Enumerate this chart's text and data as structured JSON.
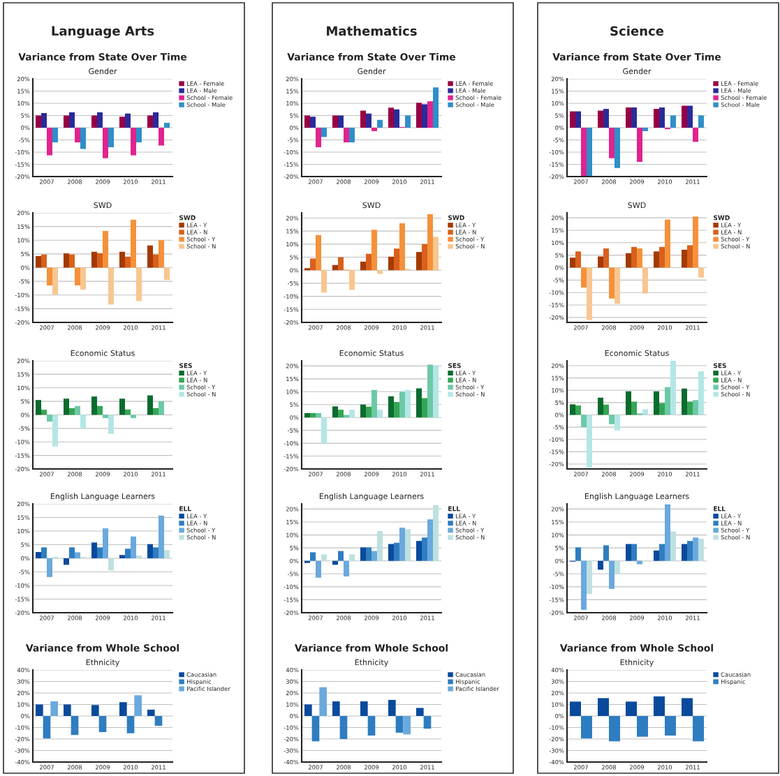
{
  "chart_data": [
    {
      "type": "bar",
      "title": "Gender",
      "annotations": [
        "Language Arts",
        "Variance from State Over Time"
      ],
      "categories": [
        "2007",
        "2008",
        "2009",
        "2010",
        "2011"
      ],
      "grid": "y",
      "legend": "top right",
      "ylim": [
        -20,
        20
      ],
      "yticks": [
        {
          "value": -20,
          "label": "-20%"
        },
        {
          "value": -15,
          "label": "-15%"
        },
        {
          "value": -10,
          "label": "-10%"
        },
        {
          "value": -5,
          "label": "-5%"
        },
        {
          "value": 0,
          "label": "0%"
        },
        {
          "value": 5,
          "label": "5%"
        },
        {
          "value": 10,
          "label": "10%"
        },
        {
          "value": 15,
          "label": "15%"
        },
        {
          "value": 20,
          "label": "20%"
        }
      ],
      "series": [
        {
          "name": "LEA - Female",
          "color": "#990044",
          "values": [
            5,
            5,
            5,
            4.5,
            5
          ]
        },
        {
          "name": "LEA - Male",
          "color": "#2a2a9a",
          "values": [
            6,
            6.3,
            6.3,
            5.8,
            6.3
          ]
        },
        {
          "name": "School - Female",
          "color": "#e0248f",
          "values": [
            -11.3,
            -6,
            -12.5,
            -11.3,
            -7.3
          ]
        },
        {
          "name": "School - Male",
          "color": "#2f8fc8",
          "values": [
            -6,
            -8.7,
            -8,
            -6,
            2
          ]
        }
      ]
    },
    {
      "type": "bar",
      "title": "SWD",
      "legend_title": "SWD",
      "categories": [
        "2007",
        "2008",
        "2009",
        "2010",
        "2011"
      ],
      "grid": "y",
      "legend": "top right",
      "ylim": [
        -20,
        20
      ],
      "yticks": [
        {
          "value": -20,
          "label": "-20%"
        },
        {
          "value": -15,
          "label": "-15%"
        },
        {
          "value": -10,
          "label": "-10%"
        },
        {
          "value": -5,
          "label": "-5%"
        },
        {
          "value": 0,
          "label": "0%"
        },
        {
          "value": 5,
          "label": "5%"
        },
        {
          "value": 10,
          "label": "10%"
        },
        {
          "value": 15,
          "label": "15%"
        },
        {
          "value": 20,
          "label": "20%"
        }
      ],
      "series": [
        {
          "name": "LEA - Y",
          "color": "#a33a00",
          "values": [
            4.2,
            5.2,
            5.8,
            5.8,
            8.1
          ]
        },
        {
          "name": "LEA - N",
          "color": "#d9601c",
          "values": [
            4.8,
            4.8,
            5.3,
            4,
            4.8
          ]
        },
        {
          "name": "School - Y",
          "color": "#f5913a",
          "values": [
            -6.5,
            -6.5,
            13.4,
            17.5,
            10
          ]
        },
        {
          "name": "School - N",
          "color": "#f8c690",
          "values": [
            -9.8,
            -8,
            -13.5,
            -12.2,
            -4.5
          ]
        }
      ]
    },
    {
      "type": "bar",
      "title": "Economic Status",
      "legend_title": "SES",
      "categories": [
        "2007",
        "2008",
        "2009",
        "2010",
        "2011"
      ],
      "grid": "y",
      "legend": "top right",
      "ylim": [
        -20,
        20
      ],
      "yticks": [
        {
          "value": -20,
          "label": "-20%"
        },
        {
          "value": -15,
          "label": "-15%"
        },
        {
          "value": -10,
          "label": "-10%"
        },
        {
          "value": -5,
          "label": "-5%"
        },
        {
          "value": 0,
          "label": "0%"
        },
        {
          "value": 5,
          "label": "5%"
        },
        {
          "value": 10,
          "label": "10%"
        },
        {
          "value": 15,
          "label": "15%"
        },
        {
          "value": 20,
          "label": "20%"
        }
      ],
      "series": [
        {
          "name": "LEA - Y",
          "color": "#0b6b2f",
          "values": [
            5.5,
            6,
            6.8,
            6,
            7.2
          ]
        },
        {
          "name": "LEA - N",
          "color": "#35a654",
          "values": [
            1.9,
            2.5,
            3.3,
            2,
            2.5
          ]
        },
        {
          "name": "School - Y",
          "color": "#6cc9a6",
          "values": [
            -2.5,
            3.3,
            -1.2,
            -1.2,
            5
          ]
        },
        {
          "name": "School - N",
          "color": "#b4e6e6",
          "values": [
            -11.7,
            -5,
            -7,
            0,
            0
          ]
        }
      ]
    },
    {
      "type": "bar",
      "title": "English Language Learners",
      "legend_title": "ELL",
      "categories": [
        "2007",
        "2008",
        "2009",
        "2010",
        "2011"
      ],
      "grid": "y",
      "legend": "top right",
      "ylim": [
        -20,
        20
      ],
      "yticks": [
        {
          "value": -20,
          "label": "-20%"
        },
        {
          "value": -15,
          "label": "-15%"
        },
        {
          "value": -10,
          "label": "-10%"
        },
        {
          "value": -5,
          "label": "-5%"
        },
        {
          "value": 0,
          "label": "0%"
        },
        {
          "value": 5,
          "label": "5%"
        },
        {
          "value": 10,
          "label": "10%"
        },
        {
          "value": 15,
          "label": "15%"
        },
        {
          "value": 20,
          "label": "20%"
        }
      ],
      "series": [
        {
          "name": "LEA - Y",
          "color": "#0a4a9c",
          "values": [
            2.3,
            -2.4,
            5.8,
            1.2,
            5.2
          ]
        },
        {
          "name": "LEA - N",
          "color": "#2e7dc0",
          "values": [
            4,
            4,
            4,
            3.5,
            4
          ]
        },
        {
          "name": "School - Y",
          "color": "#6aa9dd",
          "values": [
            -6.9,
            2.2,
            11,
            8,
            15.7
          ]
        },
        {
          "name": "School - N",
          "color": "#bfe0e0",
          "values": [
            0.5,
            0.5,
            -4.5,
            1,
            3
          ]
        }
      ]
    },
    {
      "type": "bar",
      "title": "Ethnicity",
      "annotations": [
        "Variance from Whole School"
      ],
      "categories": [
        "2007",
        "2008",
        "2009",
        "2010",
        "2011"
      ],
      "grid": "y",
      "legend": "top right",
      "ylim": [
        -40,
        40
      ],
      "yticks": [
        {
          "value": -40,
          "label": "-40%"
        },
        {
          "value": -30,
          "label": "-30%"
        },
        {
          "value": -20,
          "label": "-20%"
        },
        {
          "value": -10,
          "label": "-10%"
        },
        {
          "value": 0,
          "label": "0%"
        },
        {
          "value": 10,
          "label": "10%"
        },
        {
          "value": 20,
          "label": "20%"
        },
        {
          "value": 30,
          "label": "30%"
        },
        {
          "value": 40,
          "label": "40%"
        }
      ],
      "series": [
        {
          "name": "Caucasian",
          "color": "#0a4a9c",
          "values": [
            10,
            10,
            9.5,
            12,
            5.5
          ]
        },
        {
          "name": "Hispanic",
          "color": "#2e7dc0",
          "values": [
            -19.5,
            -16.5,
            -14,
            -15,
            -8.5
          ]
        },
        {
          "name": "Pacific Islander",
          "color": "#6aa9dd",
          "values": [
            12.7,
            null,
            null,
            18,
            null
          ]
        }
      ]
    },
    {
      "type": "bar",
      "title": "Gender",
      "annotations": [
        "Mathematics",
        "Variance from State Over Time"
      ],
      "categories": [
        "2007",
        "2008",
        "2009",
        "2010",
        "2011"
      ],
      "grid": "y",
      "legend": "top right",
      "ylim": [
        -20,
        20
      ],
      "yticks": [
        {
          "value": -20,
          "label": "-20%"
        },
        {
          "value": -15,
          "label": "-15%"
        },
        {
          "value": -10,
          "label": "-10%"
        },
        {
          "value": -5,
          "label": "-5%"
        },
        {
          "value": 0,
          "label": "0%"
        },
        {
          "value": 5,
          "label": "5%"
        },
        {
          "value": 10,
          "label": "10%"
        },
        {
          "value": 15,
          "label": "15%"
        },
        {
          "value": 20,
          "label": "20%"
        }
      ],
      "series": [
        {
          "name": "LEA - Female",
          "color": "#990044",
          "values": [
            5,
            5,
            7,
            8.2,
            10.2
          ]
        },
        {
          "name": "LEA - Male",
          "color": "#2a2a9a",
          "values": [
            4.5,
            5,
            5.8,
            7.5,
            9.6
          ]
        },
        {
          "name": "School - Female",
          "color": "#e0248f",
          "values": [
            -8,
            -6,
            -1.4,
            0.3,
            10.8
          ]
        },
        {
          "name": "School - Male",
          "color": "#2f8fc8",
          "values": [
            -3.8,
            -6,
            3.2,
            5,
            16.5
          ]
        }
      ]
    },
    {
      "type": "bar",
      "title": "SWD",
      "legend_title": "SWD",
      "categories": [
        "2007",
        "2008",
        "2009",
        "2010",
        "2011"
      ],
      "grid": "y",
      "legend": "top right",
      "ylim": [
        -20,
        22
      ],
      "yticks": [
        {
          "value": -20,
          "label": "-20%"
        },
        {
          "value": -15,
          "label": "-15%"
        },
        {
          "value": -10,
          "label": "-10%"
        },
        {
          "value": -5,
          "label": "-5%"
        },
        {
          "value": 0,
          "label": "0%"
        },
        {
          "value": 5,
          "label": "5%"
        },
        {
          "value": 10,
          "label": "10%"
        },
        {
          "value": 15,
          "label": "15%"
        },
        {
          "value": 20,
          "label": "20%"
        }
      ],
      "series": [
        {
          "name": "LEA - Y",
          "color": "#a33a00",
          "values": [
            0.8,
            2,
            3.3,
            5.2,
            7
          ]
        },
        {
          "name": "LEA - N",
          "color": "#d9601c",
          "values": [
            4.5,
            5,
            6.3,
            8.3,
            10
          ]
        },
        {
          "name": "School - Y",
          "color": "#f5913a",
          "values": [
            13.5,
            0.2,
            15.5,
            18,
            21.5
          ]
        },
        {
          "name": "School - N",
          "color": "#f8c690",
          "values": [
            -8.6,
            -7.5,
            -1.4,
            0.5,
            12.8
          ]
        }
      ]
    },
    {
      "type": "bar",
      "title": "Economic Status",
      "legend_title": "SES",
      "categories": [
        "2007",
        "2008",
        "2009",
        "2010",
        "2011"
      ],
      "grid": "y",
      "legend": "top right",
      "ylim": [
        -20,
        22
      ],
      "yticks": [
        {
          "value": -20,
          "label": "-20%"
        },
        {
          "value": -15,
          "label": "-15%"
        },
        {
          "value": -10,
          "label": "-10%"
        },
        {
          "value": -5,
          "label": "-5%"
        },
        {
          "value": 0,
          "label": "0%"
        },
        {
          "value": 5,
          "label": "5%"
        },
        {
          "value": 10,
          "label": "10%"
        },
        {
          "value": 15,
          "label": "15%"
        },
        {
          "value": 20,
          "label": "20%"
        }
      ],
      "series": [
        {
          "name": "LEA - Y",
          "color": "#0b6b2f",
          "values": [
            1.7,
            4.3,
            5,
            8.2,
            11.3
          ]
        },
        {
          "name": "LEA - N",
          "color": "#35a654",
          "values": [
            1.7,
            3,
            4.2,
            6,
            7.5
          ]
        },
        {
          "name": "School - Y",
          "color": "#6cc9a6",
          "values": [
            1.7,
            1,
            10.7,
            10,
            20.5
          ]
        },
        {
          "name": "School - N",
          "color": "#b4e6e6",
          "values": [
            -10,
            3,
            3,
            10.7,
            20
          ]
        }
      ]
    },
    {
      "type": "bar",
      "title": "English Language Learners",
      "legend_title": "ELL",
      "categories": [
        "2007",
        "2008",
        "2009",
        "2010",
        "2011"
      ],
      "grid": "y",
      "legend": "top right",
      "ylim": [
        -20,
        22
      ],
      "yticks": [
        {
          "value": -20,
          "label": "-20%"
        },
        {
          "value": -15,
          "label": "-15%"
        },
        {
          "value": -10,
          "label": "-10%"
        },
        {
          "value": -5,
          "label": "-5%"
        },
        {
          "value": 0,
          "label": "0%"
        },
        {
          "value": 5,
          "label": "5%"
        },
        {
          "value": 10,
          "label": "10%"
        },
        {
          "value": 15,
          "label": "15%"
        },
        {
          "value": 20,
          "label": "20%"
        }
      ],
      "series": [
        {
          "name": "LEA - Y",
          "color": "#0a4a9c",
          "values": [
            -0.8,
            -1.5,
            5.2,
            6.5,
            7.7
          ]
        },
        {
          "name": "LEA - N",
          "color": "#2e7dc0",
          "values": [
            3.3,
            3.8,
            5.2,
            7,
            9
          ]
        },
        {
          "name": "School - Y",
          "color": "#6aa9dd",
          "values": [
            -6.5,
            -6,
            3.8,
            12.8,
            16
          ]
        },
        {
          "name": "School - N",
          "color": "#bfe0e0",
          "values": [
            2.5,
            2.5,
            11.5,
            12.2,
            21.5
          ]
        }
      ]
    },
    {
      "type": "bar",
      "title": "Ethnicity",
      "annotations": [
        "Variance from Whole School"
      ],
      "categories": [
        "2007",
        "2008",
        "2009",
        "2010",
        "2011"
      ],
      "grid": "y",
      "legend": "top right",
      "ylim": [
        -40,
        40
      ],
      "yticks": [
        {
          "value": -40,
          "label": "-40%"
        },
        {
          "value": -30,
          "label": "-30%"
        },
        {
          "value": -20,
          "label": "-20%"
        },
        {
          "value": -10,
          "label": "-10%"
        },
        {
          "value": 0,
          "label": "0%"
        },
        {
          "value": 10,
          "label": "10%"
        },
        {
          "value": 20,
          "label": "20%"
        },
        {
          "value": 30,
          "label": "30%"
        },
        {
          "value": 40,
          "label": "40%"
        }
      ],
      "series": [
        {
          "name": "Caucasian",
          "color": "#0a4a9c",
          "values": [
            10,
            12.7,
            12.7,
            14,
            7
          ]
        },
        {
          "name": "Hispanic",
          "color": "#2e7dc0",
          "values": [
            -22,
            -20,
            -17,
            -14.5,
            -11
          ]
        },
        {
          "name": "Pacific Islander",
          "color": "#6aa9dd",
          "values": [
            25,
            null,
            null,
            -16,
            null
          ]
        }
      ]
    },
    {
      "type": "bar",
      "title": "Gender",
      "annotations": [
        "Science",
        "Variance from State Over Time"
      ],
      "categories": [
        "2007",
        "2008",
        "2009",
        "2010",
        "2011"
      ],
      "grid": "y",
      "legend": "top right",
      "ylim": [
        -20,
        20
      ],
      "yticks": [
        {
          "value": -20,
          "label": "-20%"
        },
        {
          "value": -15,
          "label": "-15%"
        },
        {
          "value": -10,
          "label": "-10%"
        },
        {
          "value": -5,
          "label": "-5%"
        },
        {
          "value": 0,
          "label": "0%"
        },
        {
          "value": 5,
          "label": "5%"
        },
        {
          "value": 10,
          "label": "10%"
        },
        {
          "value": 15,
          "label": "15%"
        },
        {
          "value": 20,
          "label": "20%"
        }
      ],
      "series": [
        {
          "name": "LEA - Female",
          "color": "#990044",
          "values": [
            6.7,
            7,
            8.3,
            7.7,
            9
          ]
        },
        {
          "name": "LEA - Male",
          "color": "#2a2a9a",
          "values": [
            6.7,
            7.7,
            8.3,
            8.3,
            9
          ]
        },
        {
          "name": "School - Female",
          "color": "#e0248f",
          "values": [
            -20,
            -12.5,
            -14,
            -0.6,
            -5.8
          ]
        },
        {
          "name": "School - Male",
          "color": "#2f8fc8",
          "values": [
            -20,
            -16.5,
            -1.4,
            5,
            5
          ]
        }
      ]
    },
    {
      "type": "bar",
      "title": "SWD",
      "legend_title": "SWD",
      "categories": [
        "2007",
        "2008",
        "2009",
        "2010",
        "2011"
      ],
      "grid": "y",
      "legend": "top right",
      "ylim": [
        -22,
        22
      ],
      "yticks": [
        {
          "value": -20,
          "label": "-20%"
        },
        {
          "value": -15,
          "label": "-15%"
        },
        {
          "value": -10,
          "label": "-10%"
        },
        {
          "value": -5,
          "label": "-5%"
        },
        {
          "value": 0,
          "label": "0%"
        },
        {
          "value": 5,
          "label": "5%"
        },
        {
          "value": 10,
          "label": "10%"
        },
        {
          "value": 15,
          "label": "15%"
        },
        {
          "value": 20,
          "label": "20%"
        }
      ],
      "series": [
        {
          "name": "LEA - Y",
          "color": "#a33a00",
          "values": [
            4,
            4.5,
            5.8,
            6.5,
            7.2
          ]
        },
        {
          "name": "LEA - N",
          "color": "#d9601c",
          "values": [
            6.5,
            7.7,
            8.3,
            8.3,
            9
          ]
        },
        {
          "name": "School - Y",
          "color": "#f5913a",
          "values": [
            -8,
            -12.4,
            7.7,
            19.3,
            20.5
          ]
        },
        {
          "name": "School - N",
          "color": "#f8c690",
          "values": [
            -21,
            -14.5,
            -10.4,
            0,
            -4
          ]
        }
      ]
    },
    {
      "type": "bar",
      "title": "Economic Status",
      "legend_title": "SES",
      "categories": [
        "2007",
        "2008",
        "2009",
        "2010",
        "2011"
      ],
      "grid": "y",
      "legend": "top right",
      "ylim": [
        -22,
        22
      ],
      "yticks": [
        {
          "value": -20,
          "label": "-20%"
        },
        {
          "value": -15,
          "label": "-15%"
        },
        {
          "value": -10,
          "label": "-10%"
        },
        {
          "value": -5,
          "label": "-5%"
        },
        {
          "value": 0,
          "label": "0%"
        },
        {
          "value": 5,
          "label": "5%"
        },
        {
          "value": 10,
          "label": "10%"
        },
        {
          "value": 15,
          "label": "15%"
        },
        {
          "value": 20,
          "label": "20%"
        }
      ],
      "series": [
        {
          "name": "LEA - Y",
          "color": "#0b6b2f",
          "values": [
            4.3,
            7,
            9.6,
            9.6,
            10.7
          ]
        },
        {
          "name": "LEA - N",
          "color": "#35a654",
          "values": [
            3.8,
            4.2,
            5.4,
            4.8,
            5.4
          ]
        },
        {
          "name": "School - Y",
          "color": "#6cc9a6",
          "values": [
            -5,
            -3.8,
            0.6,
            11.3,
            6
          ]
        },
        {
          "name": "School - N",
          "color": "#b4e6e6",
          "values": [
            -21.5,
            -6.3,
            2.3,
            22,
            17.7
          ]
        }
      ]
    },
    {
      "type": "bar",
      "title": "English Language Learners",
      "legend_title": "ELL",
      "categories": [
        "2007",
        "2008",
        "2009",
        "2010",
        "2011"
      ],
      "grid": "y",
      "legend": "top right",
      "ylim": [
        -20,
        22
      ],
      "yticks": [
        {
          "value": -20,
          "label": "-20%"
        },
        {
          "value": -15,
          "label": "-15%"
        },
        {
          "value": -10,
          "label": "-10%"
        },
        {
          "value": -5,
          "label": "-5%"
        },
        {
          "value": 0,
          "label": "0%"
        },
        {
          "value": 5,
          "label": "5%"
        },
        {
          "value": 10,
          "label": "10%"
        },
        {
          "value": 15,
          "label": "15%"
        },
        {
          "value": 20,
          "label": "20%"
        }
      ],
      "series": [
        {
          "name": "LEA - Y",
          "color": "#0a4a9c",
          "values": [
            -0.3,
            -3.4,
            6.5,
            4,
            6.5
          ]
        },
        {
          "name": "LEA - N",
          "color": "#2e7dc0",
          "values": [
            5.2,
            6,
            6.5,
            6.5,
            7.7
          ]
        },
        {
          "name": "School - Y",
          "color": "#6aa9dd",
          "values": [
            -18.9,
            -10.8,
            -1.3,
            21.8,
            9
          ]
        },
        {
          "name": "School - N",
          "color": "#bfe0e0",
          "values": [
            -12.8,
            -5,
            0,
            11.3,
            8.5
          ]
        }
      ]
    },
    {
      "type": "bar",
      "title": "Ethnicity",
      "annotations": [
        "Variance from Whole School"
      ],
      "categories": [
        "2007",
        "2008",
        "2009",
        "2010",
        "2011"
      ],
      "grid": "y",
      "legend": "top right",
      "ylim": [
        -40,
        40
      ],
      "yticks": [
        {
          "value": -40,
          "label": "-40%"
        },
        {
          "value": -30,
          "label": "-30%"
        },
        {
          "value": -20,
          "label": "-20%"
        },
        {
          "value": -10,
          "label": "-10%"
        },
        {
          "value": 0,
          "label": "0%"
        },
        {
          "value": 10,
          "label": "10%"
        },
        {
          "value": 20,
          "label": "20%"
        },
        {
          "value": 30,
          "label": "30%"
        },
        {
          "value": 40,
          "label": "40%"
        }
      ],
      "series": [
        {
          "name": "Caucasian",
          "color": "#0a4a9c",
          "values": [
            12.5,
            15.5,
            12.5,
            17,
            15.5
          ]
        },
        {
          "name": "Hispanic",
          "color": "#2e7dc0",
          "values": [
            -19.5,
            -22,
            -18,
            -17,
            -22
          ]
        }
      ]
    }
  ]
}
